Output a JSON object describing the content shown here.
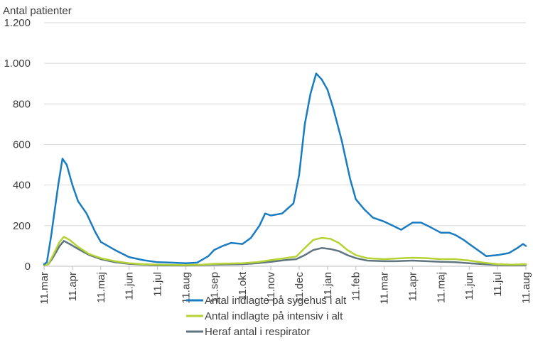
{
  "chart_data": {
    "type": "line",
    "ylabel": "Antal patienter",
    "ylim": [
      0,
      1200
    ],
    "y_ticks": [
      {
        "value": 0,
        "label": "0"
      },
      {
        "value": 200,
        "label": "200"
      },
      {
        "value": 400,
        "label": "400"
      },
      {
        "value": 600,
        "label": "600"
      },
      {
        "value": 800,
        "label": "800"
      },
      {
        "value": 1000,
        "label": "1.000"
      },
      {
        "value": 1200,
        "label": "1.200"
      }
    ],
    "x_ticks": [
      "11.mar",
      "11.apr",
      "11.maj",
      "11.jun",
      "11.jul",
      "11.aug",
      "11.sep",
      "11.okt",
      "11.nov",
      "11.dec",
      "11.jan",
      "11.feb",
      "11.mar",
      "11.apr",
      "11.maj",
      "11.jun",
      "11.jul",
      "11.aug"
    ],
    "grid": "horizontal",
    "legend_position": "bottom",
    "series": [
      {
        "name": "Antal indlagte på sygehus i alt",
        "color": "#1a7cc0",
        "points": [
          [
            0,
            10
          ],
          [
            0.1,
            20
          ],
          [
            0.25,
            150
          ],
          [
            0.5,
            400
          ],
          [
            0.65,
            530
          ],
          [
            0.8,
            500
          ],
          [
            1.0,
            400
          ],
          [
            1.2,
            320
          ],
          [
            1.5,
            260
          ],
          [
            1.8,
            170
          ],
          [
            2.0,
            120
          ],
          [
            2.5,
            80
          ],
          [
            3.0,
            45
          ],
          [
            3.5,
            30
          ],
          [
            4.0,
            20
          ],
          [
            4.5,
            18
          ],
          [
            5.0,
            15
          ],
          [
            5.4,
            18
          ],
          [
            5.8,
            50
          ],
          [
            6.0,
            80
          ],
          [
            6.3,
            100
          ],
          [
            6.6,
            115
          ],
          [
            7.0,
            110
          ],
          [
            7.3,
            140
          ],
          [
            7.6,
            200
          ],
          [
            7.8,
            260
          ],
          [
            8.0,
            250
          ],
          [
            8.4,
            260
          ],
          [
            8.8,
            310
          ],
          [
            9.0,
            450
          ],
          [
            9.2,
            700
          ],
          [
            9.4,
            850
          ],
          [
            9.6,
            950
          ],
          [
            9.8,
            920
          ],
          [
            10.0,
            870
          ],
          [
            10.2,
            780
          ],
          [
            10.5,
            620
          ],
          [
            10.8,
            430
          ],
          [
            11.0,
            330
          ],
          [
            11.3,
            280
          ],
          [
            11.6,
            240
          ],
          [
            12.0,
            220
          ],
          [
            12.3,
            200
          ],
          [
            12.6,
            180
          ],
          [
            13.0,
            215
          ],
          [
            13.3,
            215
          ],
          [
            13.6,
            195
          ],
          [
            14.0,
            165
          ],
          [
            14.3,
            165
          ],
          [
            14.5,
            155
          ],
          [
            14.8,
            130
          ],
          [
            15.0,
            110
          ],
          [
            15.3,
            80
          ],
          [
            15.6,
            50
          ],
          [
            16.0,
            55
          ],
          [
            16.4,
            65
          ],
          [
            16.7,
            90
          ],
          [
            16.9,
            110
          ],
          [
            17.0,
            100
          ]
        ]
      },
      {
        "name": "Antal indlagte på intensiv i alt",
        "color": "#b5d334",
        "points": [
          [
            0,
            5
          ],
          [
            0.15,
            10
          ],
          [
            0.3,
            50
          ],
          [
            0.55,
            120
          ],
          [
            0.7,
            145
          ],
          [
            0.9,
            130
          ],
          [
            1.2,
            95
          ],
          [
            1.6,
            60
          ],
          [
            2.0,
            40
          ],
          [
            2.5,
            25
          ],
          [
            3.0,
            15
          ],
          [
            3.5,
            10
          ],
          [
            4.0,
            8
          ],
          [
            5.0,
            6
          ],
          [
            5.6,
            8
          ],
          [
            6.0,
            12
          ],
          [
            7.0,
            15
          ],
          [
            7.5,
            20
          ],
          [
            8.0,
            30
          ],
          [
            8.5,
            40
          ],
          [
            8.9,
            48
          ],
          [
            9.2,
            90
          ],
          [
            9.5,
            130
          ],
          [
            9.8,
            140
          ],
          [
            10.1,
            135
          ],
          [
            10.4,
            115
          ],
          [
            10.7,
            80
          ],
          [
            11.0,
            55
          ],
          [
            11.4,
            40
          ],
          [
            12.0,
            35
          ],
          [
            12.4,
            38
          ],
          [
            13.0,
            42
          ],
          [
            13.5,
            40
          ],
          [
            14.0,
            35
          ],
          [
            14.5,
            35
          ],
          [
            15.0,
            28
          ],
          [
            15.5,
            18
          ],
          [
            16.0,
            10
          ],
          [
            16.5,
            8
          ],
          [
            17.0,
            10
          ]
        ]
      },
      {
        "name": "Heraf antal i respirator",
        "color": "#5f7580",
        "points": [
          [
            0,
            5
          ],
          [
            0.15,
            10
          ],
          [
            0.3,
            40
          ],
          [
            0.55,
            100
          ],
          [
            0.7,
            125
          ],
          [
            0.9,
            110
          ],
          [
            1.2,
            85
          ],
          [
            1.6,
            55
          ],
          [
            2.0,
            35
          ],
          [
            2.5,
            20
          ],
          [
            3.0,
            12
          ],
          [
            3.5,
            8
          ],
          [
            4.0,
            5
          ],
          [
            5.0,
            4
          ],
          [
            5.6,
            6
          ],
          [
            6.0,
            8
          ],
          [
            7.0,
            10
          ],
          [
            7.5,
            15
          ],
          [
            8.0,
            22
          ],
          [
            8.5,
            30
          ],
          [
            8.9,
            35
          ],
          [
            9.2,
            55
          ],
          [
            9.5,
            80
          ],
          [
            9.8,
            90
          ],
          [
            10.1,
            85
          ],
          [
            10.4,
            75
          ],
          [
            10.7,
            55
          ],
          [
            11.0,
            40
          ],
          [
            11.4,
            28
          ],
          [
            12.0,
            25
          ],
          [
            12.4,
            25
          ],
          [
            13.0,
            28
          ],
          [
            13.5,
            25
          ],
          [
            14.0,
            22
          ],
          [
            14.5,
            20
          ],
          [
            15.0,
            15
          ],
          [
            15.5,
            10
          ],
          [
            16.0,
            6
          ],
          [
            16.5,
            5
          ],
          [
            17.0,
            6
          ]
        ]
      }
    ]
  }
}
